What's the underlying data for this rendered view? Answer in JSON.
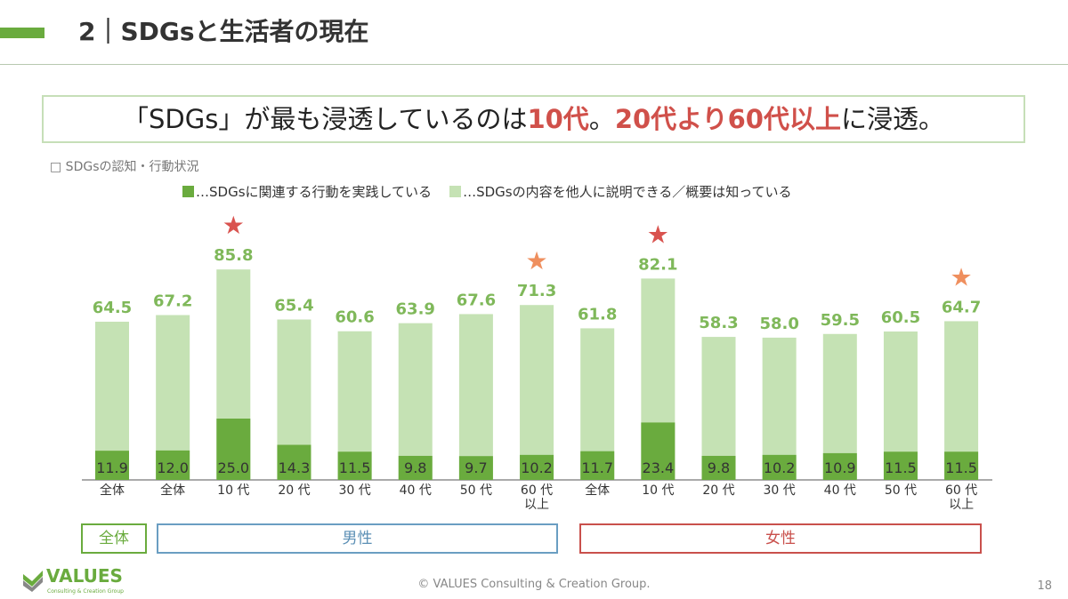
{
  "header": {
    "title": "2｜SDGsと生活者の現在"
  },
  "headline": {
    "part1": "「SDGs」が最も浸透しているのは",
    "part2": "10代",
    "part3": "。",
    "part4": "20代より60代以上",
    "part5": "に浸透。"
  },
  "subtitle": "□ SDGsの認知・行動状況",
  "groups": {
    "all": "全体",
    "male": "男性",
    "female": "女性"
  },
  "footer": {
    "copyright": "© VALUES Consulting & Creation Group.",
    "page": "18",
    "logo": "VALUES",
    "logo_sub": "Consulting & Creation Group"
  },
  "colors": {
    "dark": "#6aab3e",
    "light": "#c5e2b4",
    "red_star": "#d9534f",
    "orange_star": "#ef8f5e",
    "label": "#7fb85a"
  },
  "chart_data": {
    "type": "bar",
    "stacked": "overlay",
    "categories": [
      "全体",
      "全体",
      "10代",
      "20代",
      "30代",
      "40代",
      "50代",
      "60代以上",
      "全体",
      "10代",
      "20代",
      "30代",
      "40代",
      "50代",
      "60代以上"
    ],
    "category_lines": [
      [
        "全体"
      ],
      [
        "全体"
      ],
      [
        "10 代"
      ],
      [
        "20 代"
      ],
      [
        "30 代"
      ],
      [
        "40 代"
      ],
      [
        "50 代"
      ],
      [
        "60 代",
        "以上"
      ],
      [
        "全体"
      ],
      [
        "10 代"
      ],
      [
        "20 代"
      ],
      [
        "30 代"
      ],
      [
        "40 代"
      ],
      [
        "50 代"
      ],
      [
        "60 代",
        "以上"
      ]
    ],
    "series": [
      {
        "name": "…SDGsに関連する行動を実践している",
        "values": [
          11.9,
          12.0,
          25.0,
          14.3,
          11.5,
          9.8,
          9.7,
          10.2,
          11.7,
          23.4,
          9.8,
          10.2,
          10.9,
          11.5,
          11.5
        ]
      },
      {
        "name": "…SDGsの内容を他人に説明できる／概要は知っている",
        "values": [
          64.5,
          67.2,
          85.8,
          65.4,
          60.6,
          63.9,
          67.6,
          71.3,
          61.8,
          82.1,
          58.3,
          58.0,
          59.5,
          60.5,
          64.7
        ]
      }
    ],
    "stars": [
      "",
      "",
      "red",
      "",
      "",
      "",
      "",
      "orange",
      "",
      "red",
      "",
      "",
      "",
      "",
      "orange"
    ],
    "ylim": [
      0,
      100
    ],
    "grid": false,
    "legend": "top"
  }
}
